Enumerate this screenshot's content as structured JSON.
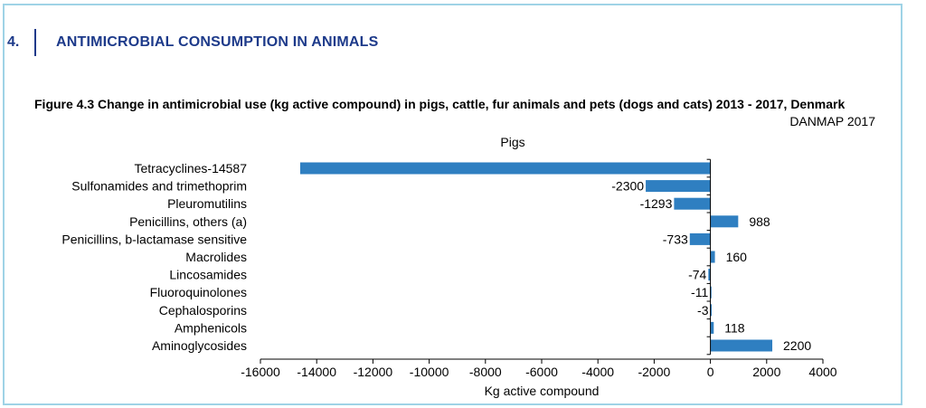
{
  "section": {
    "number": "4.",
    "title": "ANTIMICROBIAL CONSUMPTION IN ANIMALS"
  },
  "figure": {
    "caption": "Figure 4.3 Change in antimicrobial use (kg active compound) in pigs, cattle, fur animals and pets (dogs and cats) 2013 - 2017, Denmark",
    "source": "DANMAP 2017"
  },
  "colors": {
    "bar": "#2f7fc1",
    "heading": "#1d3a8a",
    "frame": "#9fd3e6"
  },
  "chart_data": {
    "type": "bar",
    "orientation": "horizontal",
    "title": "Pigs",
    "xlabel": "Kg active compound",
    "ylabel": "",
    "xlim": [
      -16000,
      4000
    ],
    "xticks": [
      -16000,
      -14000,
      -12000,
      -10000,
      -8000,
      -6000,
      -4000,
      -2000,
      0,
      2000,
      4000
    ],
    "grid": false,
    "categories": [
      "Tetracyclines-14587",
      "Sulfonamides and trimethoprim",
      "Pleuromutilins",
      "Penicillins, others (a)",
      "Penicillins, b-lactamase sensitive",
      "Macrolides",
      "Lincosamides",
      "Fluoroquinolones",
      "Cephalosporins",
      "Amphenicols",
      "Aminoglycosides"
    ],
    "values": [
      -14587,
      -2300,
      -1293,
      988,
      -733,
      160,
      -74,
      -11,
      -3,
      118,
      2200
    ],
    "data_labels": [
      "",
      "-2300",
      "-1293",
      "988",
      "-733",
      "160",
      "-74",
      "-11",
      "-3",
      "118",
      "2200"
    ]
  }
}
